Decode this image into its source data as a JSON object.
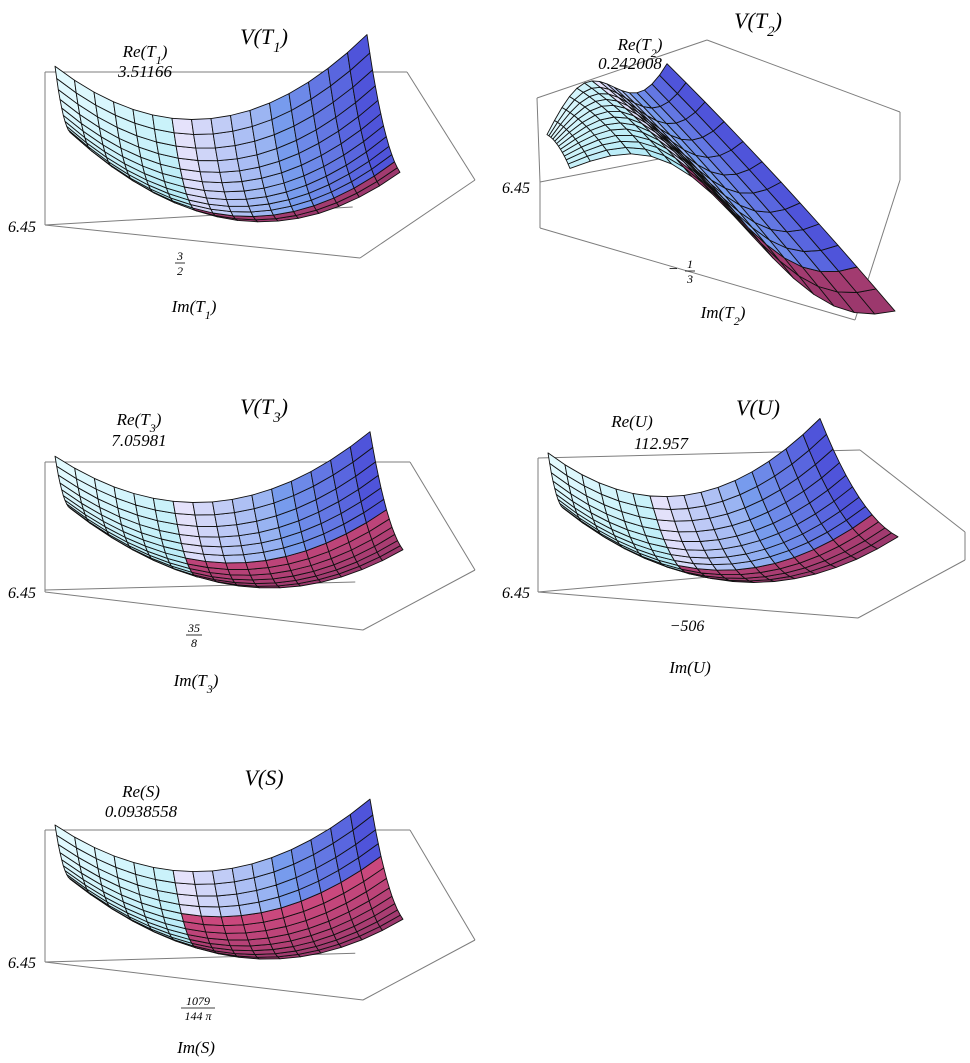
{
  "chart_data": [
    {
      "type": "surface",
      "title": "V(T_1)",
      "title_main": "V(T",
      "title_sub": "1",
      "title_end": ")",
      "fixed_label": "Re(T",
      "fixed_sub": "1",
      "fixed_end": ")",
      "fixed_value": "3.51166",
      "x_label": "Im(T",
      "x_sub": "1",
      "x_end": ")",
      "x_tick": {
        "numerator": "3",
        "denominator": "2",
        "sign": ""
      },
      "z_tick": "6.45",
      "surface": {
        "shape": "bowl",
        "depth": 0.55,
        "magenta_share": 0.2
      }
    },
    {
      "type": "surface",
      "title": "V(T_2)",
      "title_main": "V(T",
      "title_sub": "2",
      "title_end": ")",
      "fixed_label": "Re(T",
      "fixed_sub": "2",
      "fixed_end": ")",
      "fixed_value": "0.242008",
      "x_label": "Im(T",
      "x_sub": "2",
      "x_end": ")",
      "x_tick": {
        "numerator": "1",
        "denominator": "3",
        "sign": "−"
      },
      "z_tick": "6.45",
      "surface": {
        "shape": "saddle",
        "depth": 0.55,
        "magenta_share": 0.2
      }
    },
    {
      "type": "surface",
      "title": "V(T_3)",
      "title_main": "V(T",
      "title_sub": "3",
      "title_end": ")",
      "fixed_label": "Re(T",
      "fixed_sub": "3",
      "fixed_end": ")",
      "fixed_value": "7.05981",
      "x_label": "Im(T",
      "x_sub": "3",
      "x_end": ")",
      "x_tick": {
        "numerator": "35",
        "denominator": "8",
        "sign": ""
      },
      "z_tick": "6.45",
      "surface": {
        "shape": "bowl",
        "depth": 0.6,
        "magenta_share": 0.5
      }
    },
    {
      "type": "surface",
      "title": "V(U)",
      "title_main": "V(U",
      "title_sub": "",
      "title_end": ")",
      "fixed_label": "Re(U",
      "fixed_sub": "",
      "fixed_end": ")",
      "fixed_value": "112.957",
      "x_label": "Im(U",
      "x_sub": "",
      "x_end": ")",
      "x_tick_plain": "−506",
      "z_tick": "6.45",
      "surface": {
        "shape": "bowl",
        "depth": 0.55,
        "magenta_share": 0.35
      }
    },
    {
      "type": "surface",
      "title": "V(S)",
      "title_main": "V(S",
      "title_sub": "",
      "title_end": ")",
      "fixed_label": "Re(S",
      "fixed_sub": "",
      "fixed_end": ")",
      "fixed_value": "0.0938558",
      "x_label": "Im(S",
      "x_sub": "",
      "x_end": ")",
      "x_tick": {
        "numerator": "1079",
        "denominator": "144 π",
        "sign": ""
      },
      "z_tick": "6.45",
      "surface": {
        "shape": "bowl",
        "depth": 0.65,
        "magenta_share": 0.65
      }
    }
  ],
  "colors": {
    "cyan_light": "#e6fbff",
    "cyan": "#a8e6f4",
    "blue": "#7aa0ee",
    "blue_deep": "#4a4bd8",
    "lavender": "#e8e4fb",
    "magenta": "#c0457a",
    "magenta_dark": "#7e2e63",
    "box": "#7d7d7d"
  }
}
